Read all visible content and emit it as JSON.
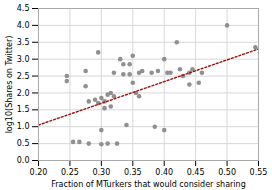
{
  "chart_data": {
    "type": "scatter",
    "xlabel": "Fraction of MTurkers that would consider sharing",
    "ylabel": "log10(Shares on Twitter)",
    "grid": true,
    "series": [
      {
        "type": "scatter",
        "color": "#909090",
        "marker": "circle",
        "x": [
          0.245,
          0.245,
          0.255,
          0.265,
          0.275,
          0.275,
          0.28,
          0.28,
          0.29,
          0.295,
          0.295,
          0.3,
          0.3,
          0.3,
          0.305,
          0.305,
          0.31,
          0.31,
          0.315,
          0.315,
          0.32,
          0.32,
          0.325,
          0.33,
          0.335,
          0.335,
          0.34,
          0.345,
          0.345,
          0.35,
          0.35,
          0.355,
          0.36,
          0.36,
          0.365,
          0.38,
          0.385,
          0.39,
          0.4,
          0.4,
          0.405,
          0.41,
          0.42,
          0.425,
          0.43,
          0.44,
          0.44,
          0.445,
          0.455,
          0.46,
          0.5,
          0.545
        ],
        "values": [
          2.35,
          2.5,
          0.55,
          0.55,
          2.2,
          2.65,
          0.5,
          1.75,
          1.8,
          1.7,
          3.2,
          0.48,
          1.85,
          0.9,
          1.55,
          1.75,
          1.95,
          0.5,
          1.6,
          2.0,
          2.6,
          1.9,
          0.5,
          3.0,
          2.85,
          2.55,
          1.05,
          2.55,
          2.85,
          2.3,
          3.1,
          2.0,
          2.6,
          1.9,
          2.65,
          2.6,
          1.0,
          2.65,
          3.0,
          0.9,
          2.6,
          2.6,
          3.5,
          2.7,
          2.5,
          2.25,
          2.6,
          2.7,
          2.3,
          2.6,
          4.0,
          3.35
        ]
      },
      {
        "type": "line",
        "color": "#9B1010",
        "line_style": "dotted",
        "x": [
          0.2,
          0.55
        ],
        "values": [
          1.05,
          3.3
        ]
      }
    ],
    "xlim": [
      0.2,
      0.55
    ],
    "ylim": [
      0,
      4.5
    ],
    "xticks": [
      {
        "value": 0.2,
        "label": "0.20"
      },
      0.25,
      {
        "value": 0.3,
        "label": "0.30"
      },
      0.35,
      {
        "value": 0.4,
        "label": "0.40"
      },
      0.45,
      {
        "value": 0.5,
        "label": "0.50"
      },
      0.55
    ],
    "yticks": [
      {
        "value": 0,
        "label": "0.0"
      },
      0.5,
      {
        "value": 1.0,
        "label": "1.0"
      },
      1.5,
      {
        "value": 2.0,
        "label": "2.0"
      },
      2.5,
      {
        "value": 3.0,
        "label": "3.0"
      },
      3.5,
      {
        "value": 4.0,
        "label": "4.0"
      },
      4.5
    ]
  }
}
